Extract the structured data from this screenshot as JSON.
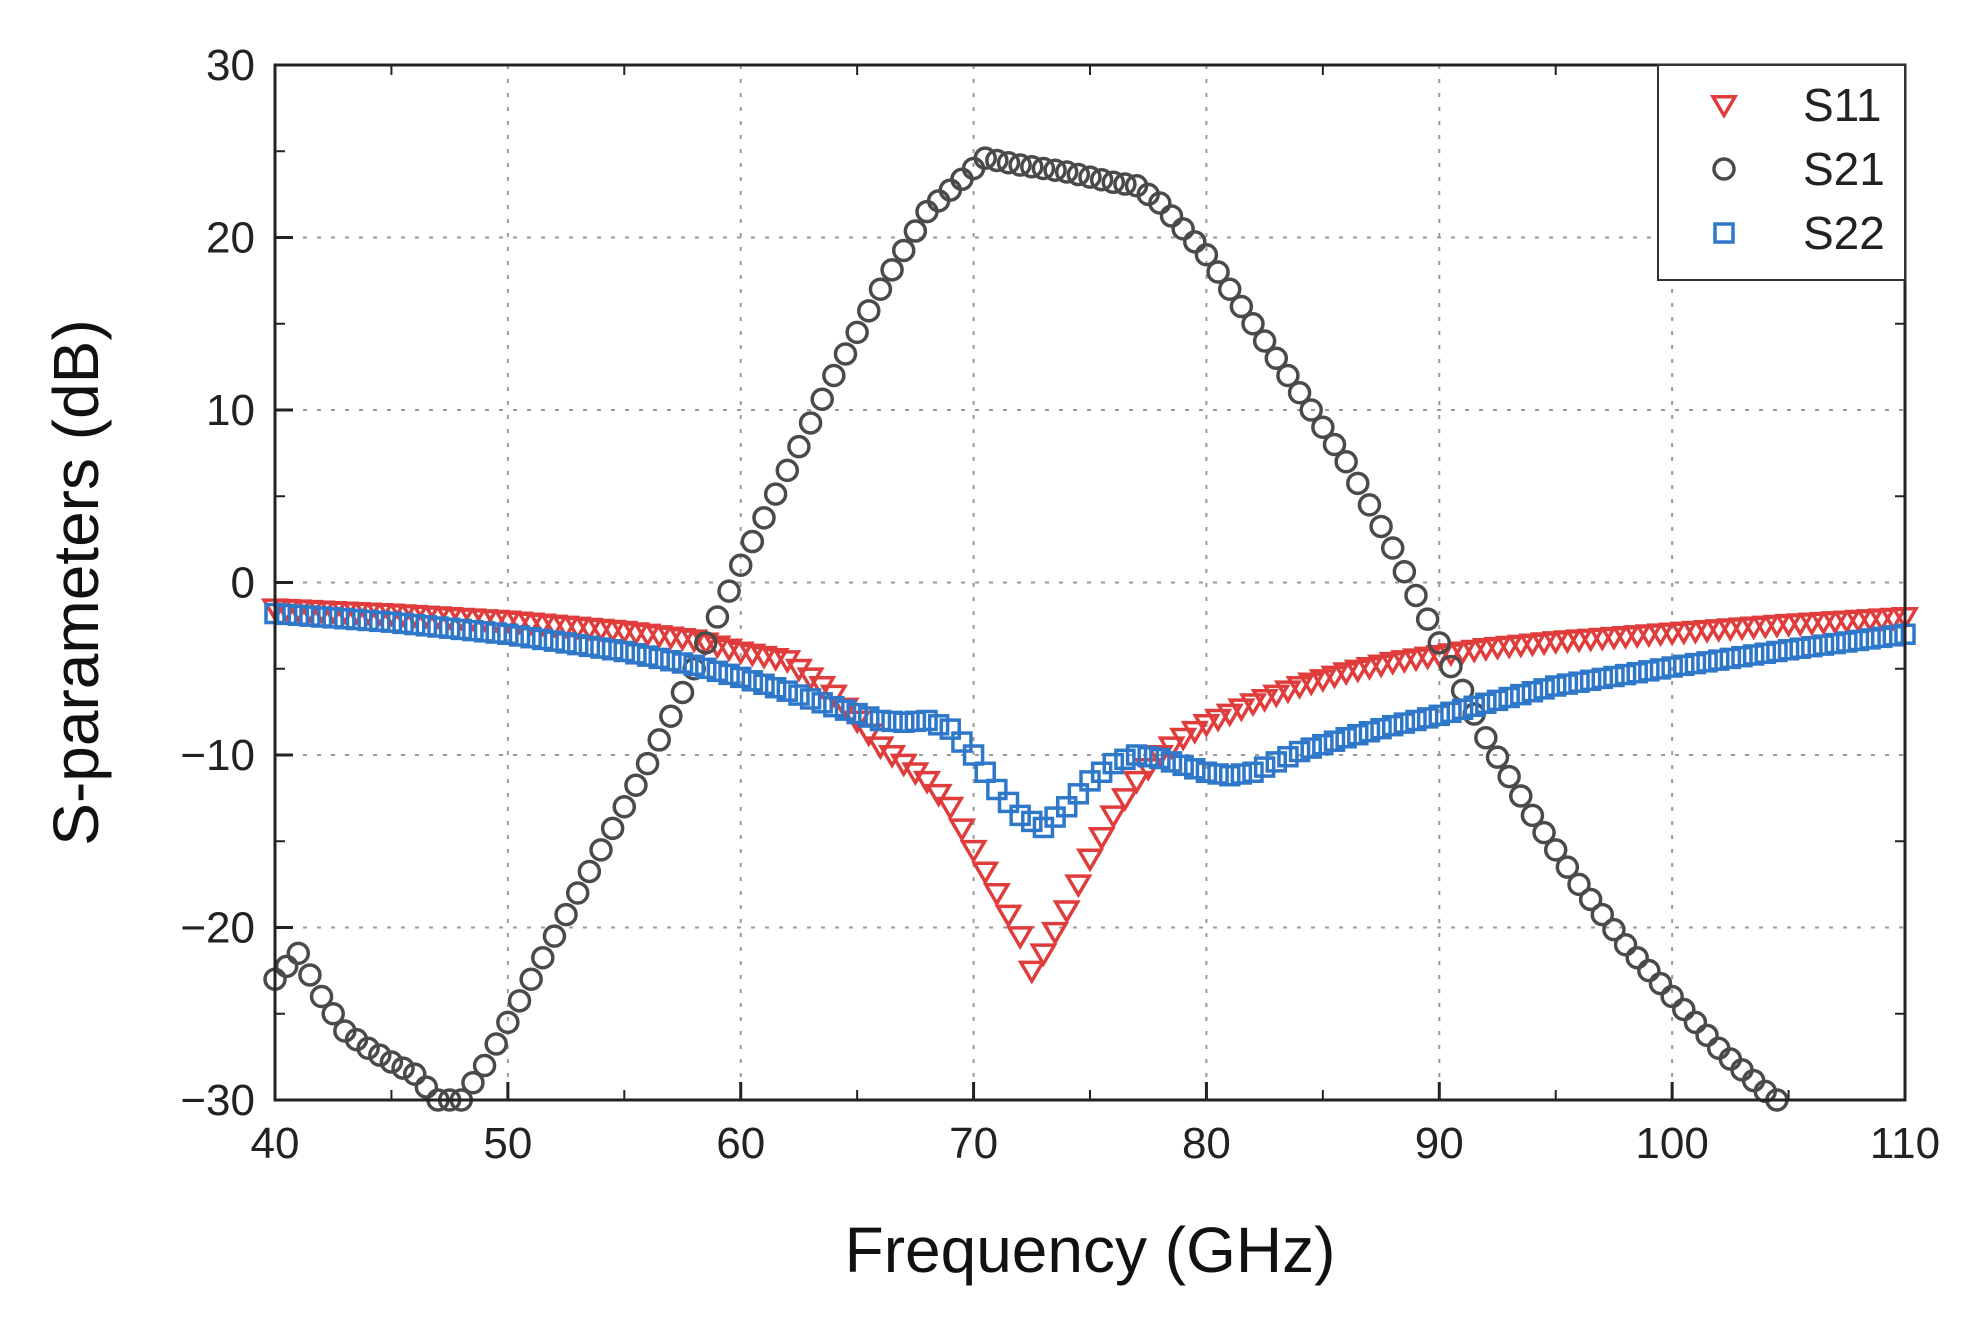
{
  "chart_data": {
    "type": "scatter",
    "title": "",
    "xlabel": "Frequency (GHz)",
    "ylabel": "S-parameters (dB)",
    "xlim": [
      40,
      110
    ],
    "ylim": [
      -30,
      30
    ],
    "xticks": [
      40,
      50,
      60,
      70,
      80,
      90,
      100,
      110
    ],
    "yticks": [
      30,
      20,
      10,
      0,
      -10,
      -20,
      -30
    ],
    "xtick_labels": [
      "40",
      "50",
      "60",
      "70",
      "80",
      "90",
      "100",
      "110"
    ],
    "ytick_labels": [
      "30",
      "20",
      "10",
      "0",
      "−10",
      "−20",
      "−30"
    ],
    "grid": true,
    "legend_position": "top-right",
    "series": [
      {
        "name": "S11",
        "marker": "triangle-down",
        "color": "#e03c3c",
        "points": [
          [
            40,
            -1.5
          ],
          [
            45,
            -1.8
          ],
          [
            50,
            -2.2
          ],
          [
            55,
            -2.8
          ],
          [
            58,
            -3.3
          ],
          [
            60,
            -4.0
          ],
          [
            62,
            -4.5
          ],
          [
            63,
            -5.5
          ],
          [
            64,
            -6.5
          ],
          [
            65,
            -8.0
          ],
          [
            66,
            -9.5
          ],
          [
            67,
            -10.5
          ],
          [
            68,
            -11.5
          ],
          [
            69,
            -13.0
          ],
          [
            70,
            -15.5
          ],
          [
            71,
            -18.0
          ],
          [
            72,
            -20.5
          ],
          [
            72.5,
            -22.5
          ],
          [
            73,
            -21.5
          ],
          [
            74,
            -19.0
          ],
          [
            75,
            -16.0
          ],
          [
            76,
            -13.5
          ],
          [
            77,
            -11.5
          ],
          [
            78,
            -10.0
          ],
          [
            79,
            -9.0
          ],
          [
            80,
            -8.2
          ],
          [
            82,
            -7.0
          ],
          [
            84,
            -6.0
          ],
          [
            86,
            -5.2
          ],
          [
            88,
            -4.6
          ],
          [
            90,
            -4.2
          ],
          [
            92,
            -3.8
          ],
          [
            95,
            -3.4
          ],
          [
            100,
            -2.9
          ],
          [
            105,
            -2.4
          ],
          [
            110,
            -2.0
          ]
        ]
      },
      {
        "name": "S21",
        "marker": "circle",
        "color": "#4a4a4a",
        "points": [
          [
            40,
            -23.0
          ],
          [
            41,
            -21.5
          ],
          [
            42,
            -24.0
          ],
          [
            43,
            -26.0
          ],
          [
            44,
            -27.0
          ],
          [
            45,
            -27.8
          ],
          [
            46,
            -28.5
          ],
          [
            47,
            -30.0
          ],
          [
            48,
            -30.0
          ],
          [
            49,
            -28.0
          ],
          [
            50,
            -25.5
          ],
          [
            52,
            -20.5
          ],
          [
            54,
            -15.5
          ],
          [
            56,
            -10.5
          ],
          [
            58,
            -5.0
          ],
          [
            60,
            1.0
          ],
          [
            62,
            6.5
          ],
          [
            64,
            12.0
          ],
          [
            66,
            17.0
          ],
          [
            68,
            21.5
          ],
          [
            70,
            24.0
          ],
          [
            70.5,
            24.6
          ],
          [
            72,
            24.2
          ],
          [
            74,
            23.8
          ],
          [
            76,
            23.2
          ],
          [
            77,
            23.0
          ],
          [
            78,
            22.0
          ],
          [
            80,
            19.0
          ],
          [
            82,
            15.0
          ],
          [
            84,
            11.0
          ],
          [
            86,
            7.0
          ],
          [
            88,
            2.0
          ],
          [
            90,
            -3.5
          ],
          [
            92,
            -9.0
          ],
          [
            94,
            -13.5
          ],
          [
            96,
            -17.5
          ],
          [
            98,
            -21.0
          ],
          [
            100,
            -24.0
          ],
          [
            102,
            -27.0
          ],
          [
            104,
            -29.5
          ],
          [
            104.5,
            -30.0
          ]
        ]
      },
      {
        "name": "S22",
        "marker": "square",
        "color": "#2f78c9",
        "points": [
          [
            40,
            -1.8
          ],
          [
            45,
            -2.3
          ],
          [
            50,
            -3.0
          ],
          [
            55,
            -4.0
          ],
          [
            58,
            -4.8
          ],
          [
            60,
            -5.5
          ],
          [
            62,
            -6.3
          ],
          [
            64,
            -7.2
          ],
          [
            66,
            -8.0
          ],
          [
            67,
            -8.1
          ],
          [
            68,
            -8.0
          ],
          [
            69,
            -8.5
          ],
          [
            70,
            -10.0
          ],
          [
            71,
            -12.0
          ],
          [
            72,
            -13.5
          ],
          [
            73,
            -14.2
          ],
          [
            74,
            -13.0
          ],
          [
            75,
            -11.5
          ],
          [
            76,
            -10.5
          ],
          [
            77,
            -10.0
          ],
          [
            78,
            -10.2
          ],
          [
            80,
            -11.0
          ],
          [
            81,
            -11.2
          ],
          [
            82,
            -11.0
          ],
          [
            84,
            -9.8
          ],
          [
            86,
            -9.0
          ],
          [
            88,
            -8.3
          ],
          [
            90,
            -7.7
          ],
          [
            92,
            -7.0
          ],
          [
            95,
            -6.0
          ],
          [
            100,
            -4.9
          ],
          [
            105,
            -3.9
          ],
          [
            110,
            -3.0
          ]
        ]
      }
    ]
  }
}
